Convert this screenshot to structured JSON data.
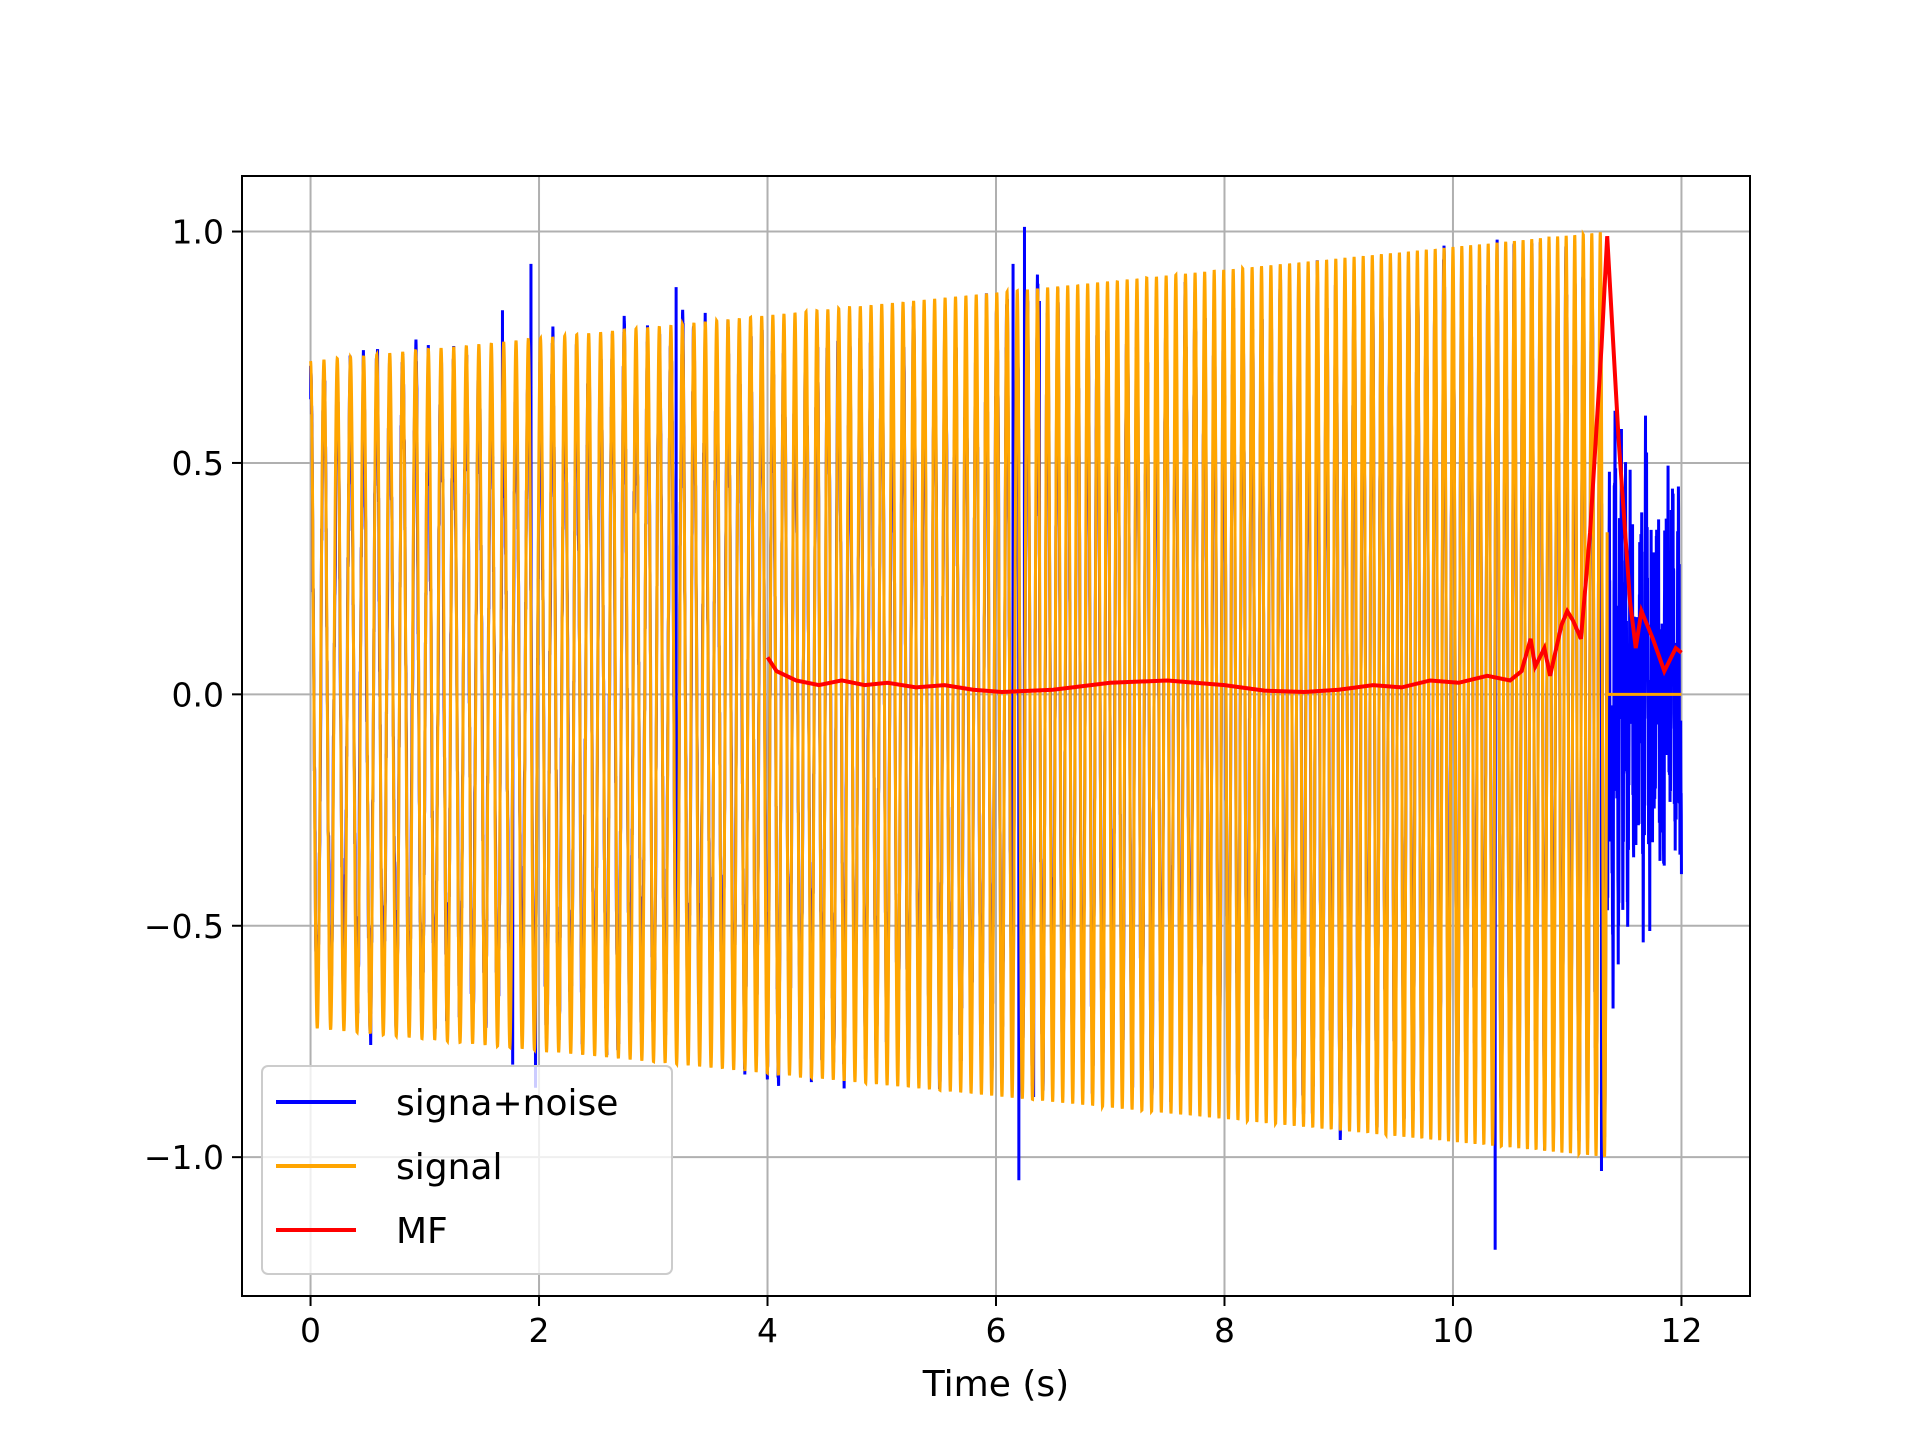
{
  "chart_data": {
    "type": "line",
    "title": "",
    "xlabel": "Time (s)",
    "ylabel": "",
    "xlim": [
      -0.6,
      12.6
    ],
    "ylim": [
      -1.3,
      1.12
    ],
    "xticks": [
      0,
      2,
      4,
      6,
      8,
      10,
      12
    ],
    "xtick_labels": [
      "0",
      "2",
      "4",
      "6",
      "8",
      "10",
      "12"
    ],
    "yticks": [
      -1.0,
      -0.5,
      0.0,
      0.5,
      1.0
    ],
    "ytick_labels": [
      "−1.0",
      "−0.5",
      "0.0",
      "0.5",
      "1.0"
    ],
    "grid": true,
    "legend_position": "lower-left",
    "series": [
      {
        "name": "signa+noise",
        "color": "#0000ff",
        "kind": "noisy chirp",
        "t_start": 0,
        "t_end": 12,
        "spikes": [
          [
            0.0,
            0.71
          ],
          [
            1.68,
            0.83
          ],
          [
            1.77,
            -0.8
          ],
          [
            1.93,
            0.93
          ],
          [
            1.97,
            -0.85
          ],
          [
            3.2,
            0.88
          ],
          [
            6.15,
            0.93
          ],
          [
            6.2,
            -1.05
          ],
          [
            6.25,
            1.01
          ],
          [
            6.33,
            -0.87
          ],
          [
            6.38,
            0.85
          ],
          [
            10.37,
            -1.2
          ],
          [
            11.3,
            -1.03
          ],
          [
            11.45,
            -0.5
          ],
          [
            11.85,
            -0.37
          ]
        ]
      },
      {
        "name": "signal",
        "color": "#ffa500",
        "kind": "chirp",
        "t_start": 0,
        "t_end": 11.35,
        "amplitude_start": 0.72,
        "amplitude_end": 1.0,
        "zero_after": 11.35,
        "zero_until": 12
      },
      {
        "name": "MF",
        "color": "#ff0000",
        "kind": "matched filter output",
        "x": [
          4.0,
          4.08,
          4.25,
          4.45,
          4.65,
          4.85,
          5.05,
          5.3,
          5.55,
          5.8,
          6.05,
          6.5,
          7.0,
          7.5,
          8.0,
          8.35,
          8.7,
          9.0,
          9.3,
          9.55,
          9.8,
          10.05,
          10.3,
          10.5,
          10.6,
          10.68,
          10.72,
          10.8,
          10.85,
          10.95,
          11.0,
          11.05,
          11.12,
          11.2,
          11.3,
          11.35,
          11.45,
          11.55,
          11.6,
          11.65,
          11.75,
          11.85,
          11.95,
          12.0
        ],
        "y": [
          0.08,
          0.05,
          0.03,
          0.02,
          0.03,
          0.02,
          0.025,
          0.015,
          0.02,
          0.01,
          0.005,
          0.01,
          0.025,
          0.03,
          0.02,
          0.008,
          0.005,
          0.01,
          0.02,
          0.015,
          0.03,
          0.025,
          0.04,
          0.03,
          0.05,
          0.12,
          0.06,
          0.1,
          0.04,
          0.15,
          0.18,
          0.16,
          0.12,
          0.35,
          0.75,
          0.99,
          0.55,
          0.2,
          0.1,
          0.18,
          0.12,
          0.05,
          0.1,
          0.09
        ]
      }
    ]
  }
}
